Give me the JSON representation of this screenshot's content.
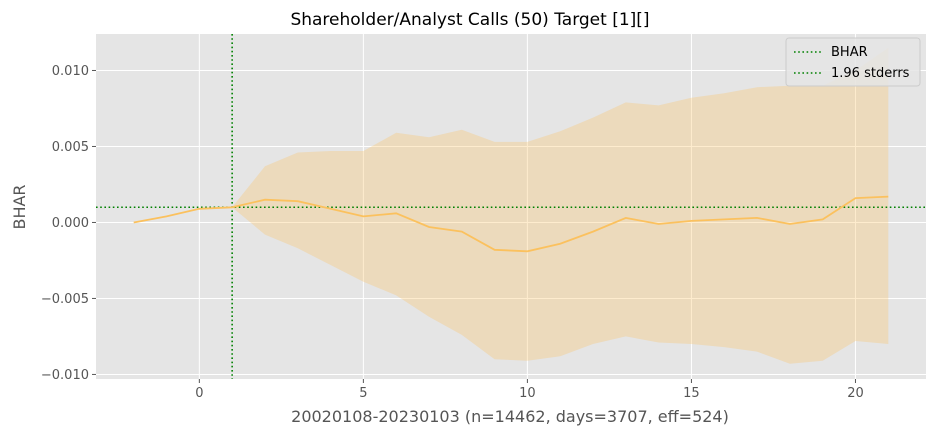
{
  "chart_data": {
    "type": "line",
    "title": "Shareholder/Analyst Calls (50) Target [1][]",
    "xlabel": "20020108-20230103 (n=14462, days=3707, eff=524)",
    "ylabel": "BHAR",
    "xlim": [
      -3.15,
      22.15
    ],
    "ylim": [
      -0.0103,
      0.0124
    ],
    "grid": true,
    "style": "ggplot",
    "x_ticks": [
      0,
      5,
      10,
      15,
      20
    ],
    "x_tick_labels": [
      "0",
      "5",
      "10",
      "15",
      "20"
    ],
    "y_ticks": [
      -0.01,
      -0.005,
      0.0,
      0.005,
      0.01
    ],
    "y_tick_labels": [
      "−0.010",
      "−0.005",
      "0.000",
      "0.005",
      "0.010"
    ],
    "x": [
      -2,
      -1,
      0,
      1,
      2,
      3,
      4,
      5,
      6,
      7,
      8,
      9,
      10,
      11,
      12,
      13,
      14,
      15,
      16,
      17,
      18,
      19,
      20,
      21
    ],
    "series": [
      {
        "values": [
          0.0,
          0.0004,
          0.0009,
          0.001,
          0.0015,
          0.0014,
          0.0009,
          0.0004,
          0.0006,
          -0.0003,
          -0.0006,
          -0.0018,
          -0.0019,
          -0.0014,
          -0.0006,
          0.0003,
          -0.0001,
          0.0001,
          0.0002,
          0.0003,
          -0.0001,
          0.0002,
          0.0016,
          0.0017
        ],
        "color": "#fbc15e"
      }
    ],
    "band": {
      "lower": [
        0.0,
        0.0004,
        0.0009,
        0.001,
        -0.0008,
        -0.0017,
        -0.0028,
        -0.0039,
        -0.0048,
        -0.0062,
        -0.0074,
        -0.009,
        -0.0091,
        -0.0088,
        -0.008,
        -0.0075,
        -0.0079,
        -0.008,
        -0.0082,
        -0.0085,
        -0.0093,
        -0.0091,
        -0.0078,
        -0.008
      ],
      "upper": [
        0.0,
        0.0004,
        0.0009,
        0.001,
        0.0037,
        0.0046,
        0.0047,
        0.0047,
        0.0059,
        0.0056,
        0.0061,
        0.0053,
        0.0053,
        0.006,
        0.0069,
        0.0079,
        0.0077,
        0.0082,
        0.0085,
        0.0089,
        0.009,
        0.009,
        0.01,
        0.0115
      ],
      "color": "#fbc15e",
      "alpha": 0.3
    },
    "reference_lines": [
      {
        "orientation": "horizontal",
        "value": 0.001,
        "color": "#008000",
        "style": "dotted"
      },
      {
        "orientation": "vertical",
        "value": 1,
        "color": "#008000",
        "style": "dotted"
      }
    ],
    "legend": {
      "position": "top-right",
      "entries": [
        {
          "label": "BHAR",
          "color": "#008000",
          "style": "dotted"
        },
        {
          "label": "1.96 stderrs",
          "color": "#008000",
          "style": "dotted"
        }
      ]
    },
    "colors": {
      "plot_background": "#e5e5e5",
      "grid": "#ffffff",
      "text": "#555555",
      "title": "#000000"
    }
  }
}
